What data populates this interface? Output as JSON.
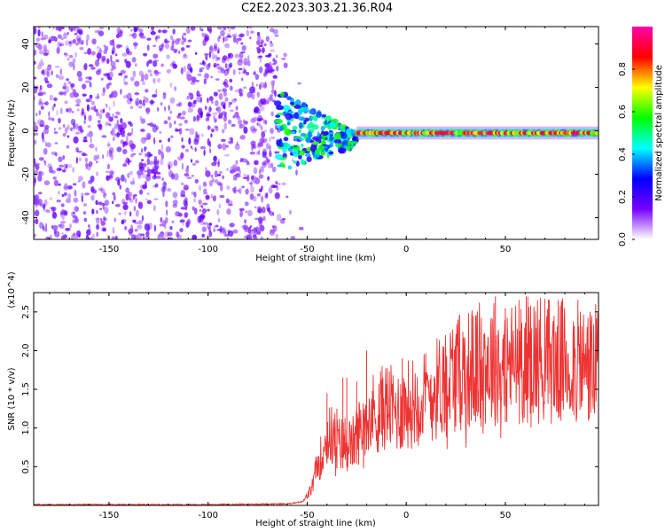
{
  "title": "C2E2.2023.303.21.36.R04",
  "chart_data": [
    {
      "type": "heatmap",
      "xlabel": "Height of straight line (km)",
      "ylabel": "Frequency (Hz)",
      "xlim": [
        -188,
        97
      ],
      "ylim": [
        -50,
        48
      ],
      "xticks": [
        -150,
        -100,
        -50,
        0,
        50
      ],
      "yticks": [
        -40,
        -20,
        0,
        20,
        40
      ],
      "colorbar": {
        "label": "Normalized spectral amplitude",
        "range": [
          0,
          1
        ],
        "ticks": [
          0.0,
          0.2,
          0.4,
          0.6,
          0.8
        ],
        "tick_labels": [
          "0.0",
          "0.2",
          "0.4",
          "0.6",
          "0.8"
        ],
        "colors": [
          "#ffffff",
          "#7700ff",
          "#0000ff",
          "#00ffff",
          "#00ff00",
          "#ffff00",
          "#ff0000",
          "#ff00aa"
        ]
      },
      "regions": [
        {
          "x_range": [
            -188,
            -65
          ],
          "freq_range": [
            -50,
            48
          ],
          "amplitude": [
            0.05,
            0.2
          ],
          "description_of_pattern": "noise"
        },
        {
          "x_range": [
            -65,
            -25
          ],
          "freq_range": [
            -20,
            13
          ],
          "amplitude": [
            0.2,
            0.6
          ]
        },
        {
          "x_range": [
            -25,
            97
          ],
          "freq_center": -1,
          "amplitude": [
            0.6,
            1.0
          ]
        }
      ]
    },
    {
      "type": "line",
      "xlabel": "Height of straight line (km)",
      "ylabel": "SNR (10 * v/v)",
      "y_multiplier": "(x10^4)",
      "xlim": [
        -188,
        97
      ],
      "ylim": [
        0,
        2.75
      ],
      "xticks": [
        -150,
        -100,
        -50,
        0,
        50
      ],
      "yticks": [
        0.5,
        1.0,
        1.5,
        2.0,
        2.5
      ],
      "ytick_labels": [
        "0.5",
        "1.0",
        "1.5",
        "2.0",
        "2.5"
      ],
      "color": "#ee3333",
      "series": [
        {
          "x": [
            -188,
            -150,
            -100,
            -60,
            -52,
            -48,
            -45,
            -42,
            -40,
            -37,
            -35,
            -32,
            -30,
            -28,
            -25,
            -22,
            -20,
            -15,
            -10,
            -5,
            0,
            5,
            10,
            15,
            20,
            25,
            30,
            35,
            40,
            45,
            50,
            55,
            60,
            65,
            70,
            75,
            80,
            85,
            90,
            97
          ],
          "values": [
            0.01,
            0.01,
            0.01,
            0.02,
            0.05,
            0.2,
            0.5,
            0.7,
            0.9,
            0.9,
            0.8,
            0.8,
            0.85,
            0.75,
            0.9,
            1.05,
            1.2,
            1.2,
            1.3,
            1.2,
            1.3,
            1.35,
            1.4,
            1.5,
            1.65,
            1.7,
            1.75,
            1.8,
            1.85,
            1.85,
            1.8,
            1.85,
            1.9,
            1.9,
            1.9,
            1.85,
            1.85,
            1.85,
            1.8,
            1.8
          ]
        }
      ],
      "peaks": {
        "x": [
          -40,
          -35,
          -32,
          -30,
          -25,
          -20,
          -2,
          25,
          35,
          45,
          50
        ],
        "values": [
          1.45,
          1.25,
          1.65,
          1.65,
          1.6,
          2.0,
          1.9,
          2.15,
          2.45,
          2.7,
          2.55
        ]
      }
    }
  ]
}
